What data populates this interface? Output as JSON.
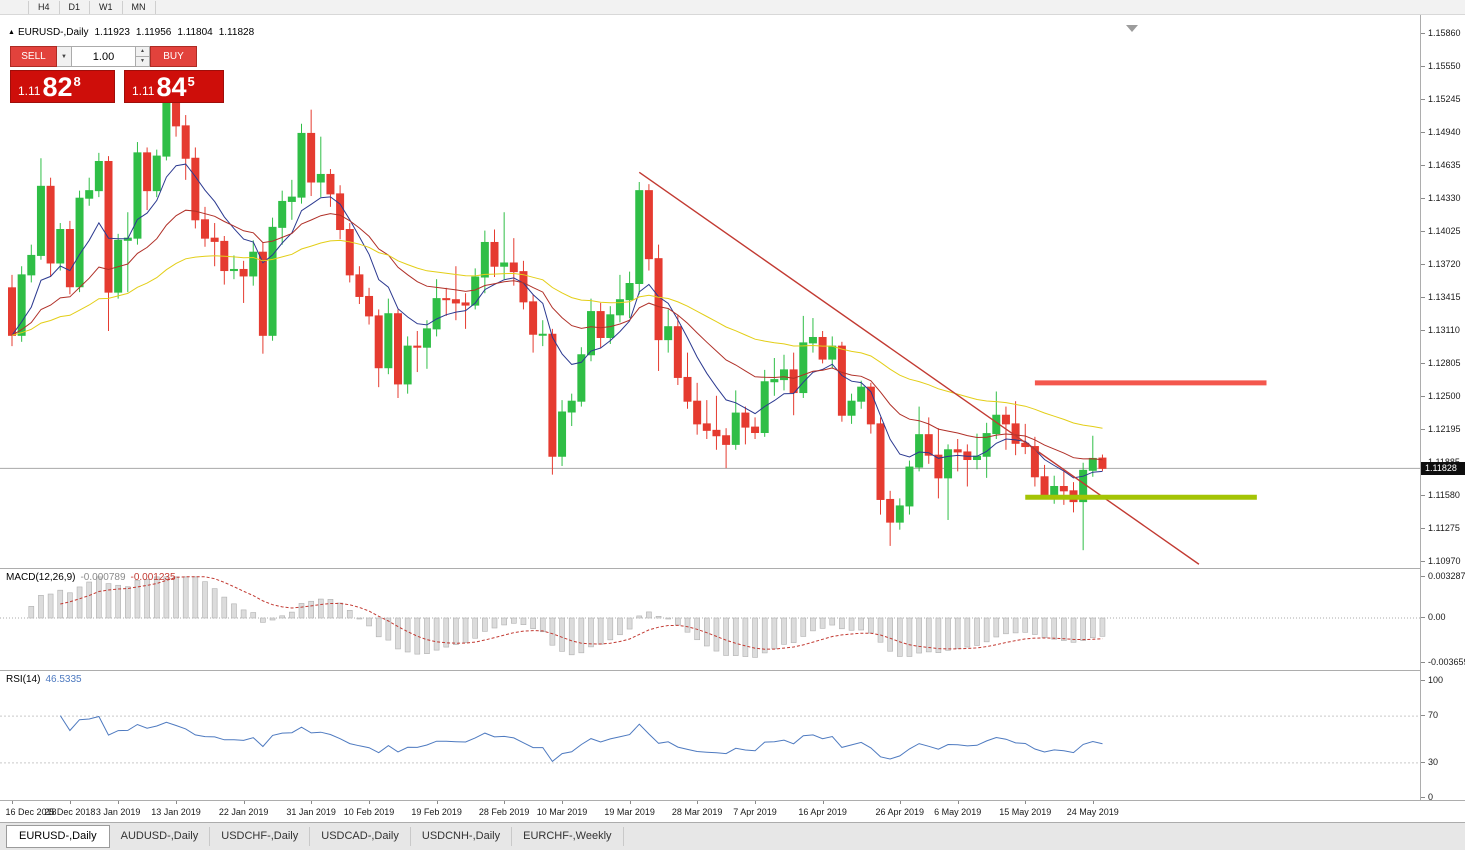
{
  "toolbar": {
    "timeframes": [
      "H4",
      "D1",
      "W1",
      "MN"
    ]
  },
  "chart": {
    "symbol_header": {
      "marker": "▲",
      "title": "EURUSD-,Daily",
      "open": "1.11923",
      "high": "1.11956",
      "low": "1.11804",
      "close": "1.11828"
    },
    "trade_panel": {
      "sell_label": "SELL",
      "buy_label": "BUY",
      "volume": "1.00",
      "bid_small": "1.11",
      "bid_big": "82",
      "bid_sup": "8",
      "ask_small": "1.11",
      "ask_big": "84",
      "ask_sup": "5"
    },
    "price_axis": {
      "ticks": [
        "1.15860",
        "1.15550",
        "1.15245",
        "1.14940",
        "1.14635",
        "1.14330",
        "1.14025",
        "1.13720",
        "1.13415",
        "1.13110",
        "1.12805",
        "1.12500",
        "1.12195",
        "1.11885",
        "1.11580",
        "1.11275",
        "1.10970"
      ],
      "current_price": "1.11828"
    },
    "macd": {
      "label": "MACD(12,26,9)",
      "value1": "-0.000789",
      "value2": "-0.001235",
      "axis": [
        "0.003287",
        "0.00",
        "-0.003659"
      ]
    },
    "rsi": {
      "label": "RSI(14)",
      "value": "46.5335",
      "axis": [
        "100",
        "70",
        "30",
        "0"
      ]
    },
    "date_axis": [
      {
        "label": "16 Dec 2018",
        "index": 0
      },
      {
        "label": "25 Dec 2018",
        "index": 6
      },
      {
        "label": "3 Jan 2019",
        "index": 11
      },
      {
        "label": "13 Jan 2019",
        "index": 17
      },
      {
        "label": "22 Jan 2019",
        "index": 24
      },
      {
        "label": "31 Jan 2019",
        "index": 31
      },
      {
        "label": "10 Feb 2019",
        "index": 37
      },
      {
        "label": "19 Feb 2019",
        "index": 44
      },
      {
        "label": "28 Feb 2019",
        "index": 51
      },
      {
        "label": "10 Mar 2019",
        "index": 57
      },
      {
        "label": "19 Mar 2019",
        "index": 64
      },
      {
        "label": "28 Mar 2019",
        "index": 71
      },
      {
        "label": "7 Apr 2019",
        "index": 77
      },
      {
        "label": "16 Apr 2019",
        "index": 84
      },
      {
        "label": "26 Apr 2019",
        "index": 92
      },
      {
        "label": "6 May 2019",
        "index": 98
      },
      {
        "label": "15 May 2019",
        "index": 105
      },
      {
        "label": "24 May 2019",
        "index": 112
      }
    ]
  },
  "tabs": [
    {
      "label": "EURUSD-,Daily",
      "active": true
    },
    {
      "label": "AUDUSD-,Daily",
      "active": false
    },
    {
      "label": "USDCHF-,Daily",
      "active": false
    },
    {
      "label": "USDCAD-,Daily",
      "active": false
    },
    {
      "label": "USDCNH-,Daily",
      "active": false
    },
    {
      "label": "EURCHF-,Weekly",
      "active": false
    }
  ],
  "colors": {
    "bull": "#2FBE46",
    "bear": "#E53B30",
    "current_price_line": "#A8A8A8",
    "price_tag_bg": "#0d0d0d",
    "macd_hist_fill": "#DCDCDC",
    "macd_hist_border": "#B0B0B0",
    "panel_button": "#E2423C",
    "panel_quote": "#CE0E0A"
  },
  "chart_data": {
    "type": "candlestick",
    "title": "EURUSD-,Daily",
    "ylim": [
      1.1097,
      1.1586
    ],
    "last_ohlc": {
      "open": 1.11923,
      "high": 1.11956,
      "low": 1.11804,
      "close": 1.11828
    },
    "candles": [
      [
        1.135,
        1.1362,
        1.1296,
        1.1306
      ],
      [
        1.1306,
        1.137,
        1.13,
        1.1362
      ],
      [
        1.1362,
        1.139,
        1.1355,
        1.138
      ],
      [
        1.138,
        1.147,
        1.1376,
        1.1444
      ],
      [
        1.1444,
        1.1452,
        1.136,
        1.1373
      ],
      [
        1.1373,
        1.141,
        1.1366,
        1.1404
      ],
      [
        1.1404,
        1.1412,
        1.1344,
        1.1351
      ],
      [
        1.1351,
        1.144,
        1.1346,
        1.1433
      ],
      [
        1.1433,
        1.1452,
        1.1426,
        1.144
      ],
      [
        1.144,
        1.1475,
        1.1434,
        1.1467
      ],
      [
        1.1467,
        1.1472,
        1.131,
        1.1346
      ],
      [
        1.1346,
        1.14,
        1.134,
        1.1394
      ],
      [
        1.1394,
        1.142,
        1.1346,
        1.1396
      ],
      [
        1.1396,
        1.1485,
        1.139,
        1.1475
      ],
      [
        1.1475,
        1.148,
        1.1422,
        1.144
      ],
      [
        1.144,
        1.1478,
        1.1434,
        1.1472
      ],
      [
        1.1472,
        1.1535,
        1.1468,
        1.1528
      ],
      [
        1.1528,
        1.154,
        1.149,
        1.15
      ],
      [
        1.15,
        1.151,
        1.145,
        1.147
      ],
      [
        1.147,
        1.148,
        1.1405,
        1.1413
      ],
      [
        1.1413,
        1.1425,
        1.1388,
        1.1396
      ],
      [
        1.1396,
        1.141,
        1.137,
        1.1393
      ],
      [
        1.1393,
        1.1398,
        1.1353,
        1.1366
      ],
      [
        1.1366,
        1.138,
        1.1358,
        1.1367
      ],
      [
        1.1367,
        1.1375,
        1.1336,
        1.1361
      ],
      [
        1.1361,
        1.1394,
        1.1352,
        1.1383
      ],
      [
        1.1383,
        1.1392,
        1.1289,
        1.1306
      ],
      [
        1.1306,
        1.1415,
        1.1301,
        1.1406
      ],
      [
        1.1406,
        1.144,
        1.139,
        1.143
      ],
      [
        1.143,
        1.145,
        1.1413,
        1.1434
      ],
      [
        1.1434,
        1.1502,
        1.1428,
        1.1493
      ],
      [
        1.1493,
        1.1515,
        1.1435,
        1.1448
      ],
      [
        1.1448,
        1.149,
        1.1434,
        1.1455
      ],
      [
        1.1455,
        1.146,
        1.1425,
        1.1437
      ],
      [
        1.1437,
        1.1445,
        1.1395,
        1.1404
      ],
      [
        1.1404,
        1.141,
        1.1355,
        1.1362
      ],
      [
        1.1362,
        1.137,
        1.1335,
        1.1342
      ],
      [
        1.1342,
        1.135,
        1.1316,
        1.1324
      ],
      [
        1.1324,
        1.133,
        1.1258,
        1.1276
      ],
      [
        1.1276,
        1.134,
        1.127,
        1.1326
      ],
      [
        1.1326,
        1.133,
        1.1248,
        1.1261
      ],
      [
        1.1261,
        1.1305,
        1.1252,
        1.1296
      ],
      [
        1.1296,
        1.131,
        1.1272,
        1.1295
      ],
      [
        1.1295,
        1.132,
        1.1275,
        1.1312
      ],
      [
        1.1312,
        1.1358,
        1.1305,
        1.134
      ],
      [
        1.134,
        1.135,
        1.1324,
        1.1339
      ],
      [
        1.1339,
        1.137,
        1.132,
        1.1336
      ],
      [
        1.1336,
        1.1345,
        1.1312,
        1.1334
      ],
      [
        1.1334,
        1.1368,
        1.133,
        1.136
      ],
      [
        1.136,
        1.1403,
        1.1345,
        1.1392
      ],
      [
        1.1392,
        1.1404,
        1.136,
        1.137
      ],
      [
        1.137,
        1.142,
        1.1358,
        1.1373
      ],
      [
        1.1373,
        1.1396,
        1.1352,
        1.1365
      ],
      [
        1.1365,
        1.1375,
        1.133,
        1.1337
      ],
      [
        1.1337,
        1.1344,
        1.129,
        1.1307
      ],
      [
        1.1307,
        1.132,
        1.1296,
        1.1307
      ],
      [
        1.1307,
        1.1312,
        1.1177,
        1.1194
      ],
      [
        1.1194,
        1.1246,
        1.1185,
        1.1235
      ],
      [
        1.1235,
        1.1252,
        1.1222,
        1.1245
      ],
      [
        1.1245,
        1.1295,
        1.124,
        1.1288
      ],
      [
        1.1288,
        1.134,
        1.1282,
        1.1328
      ],
      [
        1.1328,
        1.1336,
        1.1294,
        1.1304
      ],
      [
        1.1304,
        1.1333,
        1.1298,
        1.1325
      ],
      [
        1.1325,
        1.1362,
        1.1318,
        1.1339
      ],
      [
        1.1339,
        1.1365,
        1.1322,
        1.1354
      ],
      [
        1.1354,
        1.1448,
        1.1344,
        1.144
      ],
      [
        1.144,
        1.1446,
        1.1366,
        1.1377
      ],
      [
        1.1377,
        1.139,
        1.1273,
        1.1302
      ],
      [
        1.1302,
        1.133,
        1.129,
        1.1314
      ],
      [
        1.1314,
        1.1325,
        1.126,
        1.1267
      ],
      [
        1.1267,
        1.129,
        1.1238,
        1.1245
      ],
      [
        1.1245,
        1.1262,
        1.1214,
        1.1224
      ],
      [
        1.1224,
        1.1246,
        1.121,
        1.1218
      ],
      [
        1.1218,
        1.125,
        1.12,
        1.1213
      ],
      [
        1.1213,
        1.122,
        1.1183,
        1.1205
      ],
      [
        1.1205,
        1.1255,
        1.12,
        1.1234
      ],
      [
        1.1234,
        1.124,
        1.1205,
        1.1221
      ],
      [
        1.1221,
        1.123,
        1.121,
        1.1216
      ],
      [
        1.1216,
        1.1274,
        1.1212,
        1.1263
      ],
      [
        1.1263,
        1.1285,
        1.125,
        1.1265
      ],
      [
        1.1265,
        1.1288,
        1.1255,
        1.1274
      ],
      [
        1.1274,
        1.129,
        1.1232,
        1.1253
      ],
      [
        1.1253,
        1.1324,
        1.1248,
        1.1299
      ],
      [
        1.1299,
        1.1322,
        1.129,
        1.1304
      ],
      [
        1.1304,
        1.131,
        1.128,
        1.1284
      ],
      [
        1.1284,
        1.1305,
        1.1275,
        1.1296
      ],
      [
        1.1296,
        1.13,
        1.1226,
        1.1232
      ],
      [
        1.1232,
        1.1252,
        1.1224,
        1.1245
      ],
      [
        1.1245,
        1.1264,
        1.1238,
        1.1258
      ],
      [
        1.1258,
        1.1262,
        1.1215,
        1.1224
      ],
      [
        1.1224,
        1.123,
        1.114,
        1.1154
      ],
      [
        1.1154,
        1.1162,
        1.1111,
        1.1133
      ],
      [
        1.1133,
        1.1155,
        1.1126,
        1.1148
      ],
      [
        1.1148,
        1.119,
        1.114,
        1.1184
      ],
      [
        1.1184,
        1.124,
        1.118,
        1.1214
      ],
      [
        1.1214,
        1.123,
        1.1187,
        1.1195
      ],
      [
        1.1195,
        1.122,
        1.1155,
        1.1174
      ],
      [
        1.1174,
        1.1205,
        1.1135,
        1.12
      ],
      [
        1.12,
        1.121,
        1.118,
        1.1198
      ],
      [
        1.1198,
        1.1205,
        1.1166,
        1.1191
      ],
      [
        1.1191,
        1.1215,
        1.1182,
        1.1194
      ],
      [
        1.1194,
        1.1225,
        1.1174,
        1.1215
      ],
      [
        1.1215,
        1.1254,
        1.121,
        1.1232
      ],
      [
        1.1232,
        1.124,
        1.12,
        1.1224
      ],
      [
        1.1224,
        1.1245,
        1.1195,
        1.1206
      ],
      [
        1.1206,
        1.1224,
        1.1196,
        1.1203
      ],
      [
        1.1203,
        1.1212,
        1.1166,
        1.1175
      ],
      [
        1.1175,
        1.1186,
        1.1155,
        1.1158
      ],
      [
        1.1158,
        1.1176,
        1.115,
        1.1166
      ],
      [
        1.1166,
        1.118,
        1.1149,
        1.1162
      ],
      [
        1.1162,
        1.117,
        1.1142,
        1.1152
      ],
      [
        1.1152,
        1.1188,
        1.1107,
        1.1181
      ],
      [
        1.1181,
        1.1213,
        1.1175,
        1.1192
      ],
      [
        1.11923,
        1.11956,
        1.11804,
        1.11828
      ]
    ],
    "indicators": {
      "moving_averages": [
        {
          "period": 8,
          "color": "#2B3990"
        },
        {
          "period": 20,
          "color": "#B03028"
        },
        {
          "period": 45,
          "color": "#E3CE17"
        }
      ],
      "macd": {
        "fast": 12,
        "slow": 26,
        "signal": 9,
        "signal_color": "#C23A32"
      },
      "rsi": {
        "period": 14,
        "color": "#4E7AC0",
        "levels": [
          70,
          30
        ]
      }
    },
    "overlays": {
      "trendline": {
        "from_index": 65,
        "from_price": 1.1457,
        "to_index": 123,
        "to_price": 1.1094,
        "color": "#C23A32",
        "width": 1.4
      },
      "resistance_line": {
        "price": 1.1262,
        "from_index": 106,
        "to_index": 130,
        "color": "#F4574D",
        "width": 5
      },
      "support_line": {
        "price": 1.1156,
        "from_index": 105,
        "to_index": 129,
        "color": "#A4C405",
        "width": 5
      }
    }
  }
}
